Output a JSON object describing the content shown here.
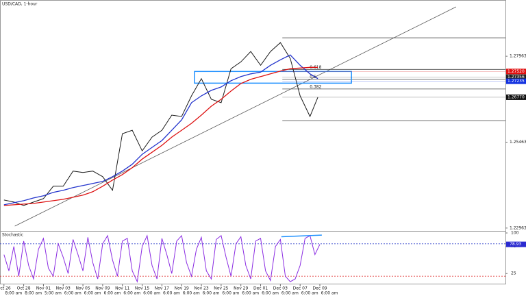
{
  "chart_data": {
    "type": "line",
    "title": "USD/CAD, 1-hour",
    "x": [
      0,
      0.5,
      1,
      1.5,
      2,
      2.5,
      3,
      3.5,
      4,
      4.5,
      5,
      5.5,
      6,
      6.5,
      7,
      7.5,
      8,
      8.5,
      9,
      9.5,
      10,
      10.5,
      11,
      11.5,
      12,
      12.5,
      13,
      13.5,
      14,
      14.5,
      15,
      15.5,
      15.9
    ],
    "series": [
      {
        "color": "#1a1a1a",
        "values": [
          1.2378,
          1.2372,
          1.2362,
          1.2372,
          1.2382,
          1.2418,
          1.2418,
          1.2462,
          1.2458,
          1.2462,
          1.2446,
          1.2406,
          1.2571,
          1.2581,
          1.2521,
          1.2561,
          1.2581,
          1.2625,
          1.2621,
          1.2681,
          1.2731,
          1.2671,
          1.2661,
          1.276,
          1.278,
          1.281,
          1.277,
          1.281,
          1.2836,
          1.279,
          1.2681,
          1.2621,
          1.2677
        ]
      },
      {
        "color": "#2233cc",
        "values": [
          1.2364,
          1.237,
          1.2376,
          1.2384,
          1.239,
          1.24,
          1.2406,
          1.2414,
          1.242,
          1.2426,
          1.2432,
          1.2446,
          1.2462,
          1.2482,
          1.2511,
          1.2531,
          1.2551,
          1.2581,
          1.2611,
          1.2661,
          1.2681,
          1.2697,
          1.2707,
          1.2725,
          1.2737,
          1.2745,
          1.275,
          1.277,
          1.2786,
          1.28,
          1.277,
          1.2745,
          1.2731
        ]
      },
      {
        "color": "#dd1111",
        "values": [
          1.2362,
          1.2364,
          1.2366,
          1.2368,
          1.2372,
          1.2376,
          1.238,
          1.2386,
          1.2392,
          1.2402,
          1.2418,
          1.2436,
          1.2452,
          1.2472,
          1.2497,
          1.2517,
          1.2537,
          1.2561,
          1.2581,
          1.2601,
          1.2625,
          1.2651,
          1.2671,
          1.2695,
          1.2717,
          1.2729,
          1.2737,
          1.2745,
          1.2753,
          1.276,
          1.2762,
          1.2764,
          1.2764
        ]
      }
    ],
    "xlim": [
      -0.2,
      25.4
    ],
    "ylim": [
      1.2288,
      1.296
    ],
    "yticks": [
      1.27963,
      1.25463,
      1.22963
    ],
    "xticks": [
      {
        "value": 0,
        "label": "Oct 26"
      },
      {
        "value": 1,
        "label": "Oct 28"
      },
      {
        "value": 2,
        "label": "Nov 01"
      },
      {
        "value": 3,
        "label": "Nov 03"
      },
      {
        "value": 4,
        "label": "Nov 05"
      },
      {
        "value": 5,
        "label": "Nov 09"
      },
      {
        "value": 6,
        "label": "Nov 11"
      },
      {
        "value": 7,
        "label": "Nov 15"
      },
      {
        "value": 8,
        "label": "Nov 17"
      },
      {
        "value": 9,
        "label": "Nov 19"
      },
      {
        "value": 10,
        "label": "Nov 23"
      },
      {
        "value": 11,
        "label": "Nov 25"
      },
      {
        "value": 12,
        "label": "Nov 29"
      },
      {
        "value": 13,
        "label": "Dec 01"
      },
      {
        "value": 14,
        "label": "Dec 03"
      },
      {
        "value": 15,
        "label": "Dec 07"
      },
      {
        "value": 16,
        "label": "Dec 09"
      }
    ],
    "xtick_sublabels": [
      "8:00 am",
      "8:00 am",
      "5:00 am",
      "6:00 am",
      "6:00 am",
      "6:00 am",
      "6:00 am",
      "6:00 am",
      "6:00 am",
      "6:00 am",
      "6:00 am",
      "6:00 am",
      "6:00 am",
      "6:00 am",
      "6:00 am",
      "6:00 am",
      "6:00 am"
    ],
    "price_tags": [
      {
        "value": 1.2752,
        "label": "1.27520",
        "color": "#e01010"
      },
      {
        "value": 1.27356,
        "color": "#222222"
      },
      {
        "value": 1.27235,
        "color": "#1030e0"
      },
      {
        "value": 1.2677,
        "label": "1.26770",
        "color": "#111111"
      }
    ],
    "trendline": {
      "x": [
        0.55,
        22.9
      ],
      "values": [
        1.2302,
        1.294
      ]
    },
    "fib": {
      "x": [
        14.1,
        25.4
      ],
      "high": 1.285,
      "low": 1.2609,
      "levels": [
        0.618,
        0.5,
        0.382
      ]
    },
    "zone": {
      "x": [
        9.65,
        17.6
      ],
      "values": [
        1.2752,
        1.2718
      ],
      "color": "#1e90ff"
    },
    "stochastic": {
      "type": "line",
      "title": "Stochastic",
      "color": "#8a2be2",
      "x": [
        0,
        0.25,
        0.5,
        0.75,
        1,
        1.25,
        1.5,
        1.75,
        2,
        2.25,
        2.5,
        2.75,
        3,
        3.25,
        3.5,
        3.75,
        4,
        4.25,
        4.5,
        4.75,
        5,
        5.25,
        5.5,
        5.75,
        6,
        6.25,
        6.5,
        6.75,
        7,
        7.25,
        7.5,
        7.75,
        8,
        8.25,
        8.5,
        8.75,
        9,
        9.25,
        9.5,
        9.75,
        10,
        10.25,
        10.5,
        10.75,
        11,
        11.25,
        11.5,
        11.75,
        12,
        12.25,
        12.5,
        12.75,
        13,
        13.25,
        13.5,
        13.75,
        14,
        14.25,
        14.5,
        14.75,
        15,
        15.25,
        15.5,
        15.75,
        16
      ],
      "values": [
        60,
        30,
        75,
        20,
        85,
        40,
        15,
        70,
        90,
        35,
        20,
        80,
        55,
        25,
        88,
        60,
        30,
        92,
        45,
        15,
        80,
        95,
        50,
        20,
        85,
        90,
        30,
        10,
        75,
        95,
        40,
        15,
        90,
        60,
        25,
        85,
        95,
        45,
        20,
        70,
        92,
        30,
        15,
        88,
        95,
        55,
        20,
        80,
        93,
        40,
        15,
        85,
        90,
        30,
        12,
        75,
        88,
        20,
        10,
        15,
        40,
        90,
        95,
        60,
        79
      ],
      "ylim": [
        5,
        100
      ],
      "yticks": [
        100,
        75,
        25
      ],
      "levels": [
        {
          "value": 80,
          "color": "#3344cc"
        },
        {
          "value": 20,
          "color": "#dd2222"
        }
      ],
      "tag": {
        "value": 78.93,
        "color": "#2a2ad0"
      },
      "divergence": {
        "x": [
          14.05,
          16.1
        ],
        "values": [
          93,
          96
        ],
        "color": "#1e90ff"
      }
    }
  }
}
